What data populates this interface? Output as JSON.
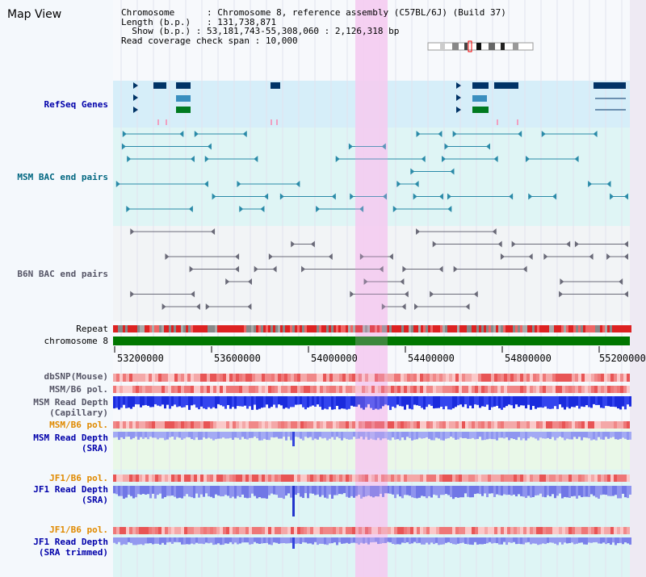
{
  "title": "Map View",
  "info": {
    "chromosome_label": "Chromosome",
    "chromosome_value": "Chromosome 8, reference assembly (C57BL/6J) (Build 37)",
    "length_label": "Length (b.p.)",
    "length_value": "131,738,871",
    "show_label": "Show (b.p.)",
    "show_value": "53,181,743-55,308,060 : 2,126,318 bp",
    "span_label": "Read coverage check span",
    "span_value": "10,000"
  },
  "tracks": {
    "refseq": "RefSeq Genes",
    "msm_bac": "MSM BAC end pairs",
    "b6n_bac": "B6N BAC end pairs",
    "repeat": "Repeat",
    "chromosome": "chromosome 8",
    "dbsnp": "dbSNP(Mouse)",
    "msm_b6_pol_1": "MSM/B6 pol.",
    "msm_depth_cap": "MSM Read Depth\n(Capillary)",
    "msm_b6_pol_2": "MSM/B6 pol.",
    "msm_depth_sra": "MSM Read Depth\n(SRA)",
    "jf1_b6_pol_1": "JF1/B6 pol.",
    "jf1_depth_sra": "JF1 Read Depth\n(SRA)",
    "jf1_b6_pol_2": "JF1/B6 pol.",
    "jf1_depth_trim": "JF1 Read Depth\n(SRA trimmed)"
  },
  "axis_ticks": [
    "53200000",
    "53600000",
    "54000000",
    "54400000",
    "54800000",
    "55200000"
  ],
  "colors": {
    "refseq_label": "#0000aa",
    "msm_bac_label": "#006680",
    "b6n_bac_label": "#555566",
    "orange_label": "#e08a00",
    "blue_label": "#0000aa",
    "highlight": "#f7d4f2",
    "chromosome_bar": "#007700"
  }
}
